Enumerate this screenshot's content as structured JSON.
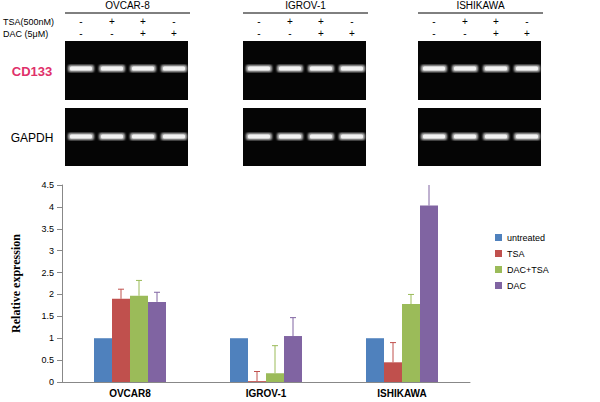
{
  "gel_panel": {
    "cell_lines": [
      "OVCAR-8",
      "IGROV-1",
      "ISHIKAWA"
    ],
    "treatments": [
      {
        "label": "TSA(500nM)",
        "lanes": [
          "-",
          "+",
          "+",
          "-"
        ]
      },
      {
        "label": "DAC (5μM)",
        "lanes": [
          "-",
          "-",
          "+",
          "+"
        ]
      }
    ],
    "genes": [
      {
        "label": "CD133",
        "color": "#e0306a"
      },
      {
        "label": "GAPDH",
        "color": "#000000"
      }
    ]
  },
  "chart_data": {
    "type": "bar",
    "categories": [
      "OVCAR8",
      "IGROV-1",
      "ISHIKAWA"
    ],
    "y_label": "Relative expression",
    "ylim": [
      0,
      4.5
    ],
    "yticks": [
      0,
      0.5,
      1,
      1.5,
      2,
      2.5,
      3,
      3.5,
      4,
      4.5
    ],
    "grid": false,
    "legend": "right",
    "series": [
      {
        "name": "untreated",
        "color": "#4f81bd",
        "values": [
          1,
          1,
          1
        ],
        "errors": [
          null,
          null,
          null
        ]
      },
      {
        "name": "TSA",
        "color": "#c0504d",
        "values": [
          1.9,
          0.02,
          0.45
        ],
        "errors": [
          0.22,
          0.22,
          0.45
        ]
      },
      {
        "name": "DAC+TSA",
        "color": "#9bbb59",
        "values": [
          1.97,
          0.2,
          1.78
        ],
        "errors": [
          0.35,
          0.63,
          0.22
        ]
      },
      {
        "name": "DAC",
        "color": "#8064a2",
        "values": [
          1.83,
          1.05,
          4.03
        ],
        "errors": [
          0.22,
          0.42,
          0.5
        ]
      }
    ]
  }
}
